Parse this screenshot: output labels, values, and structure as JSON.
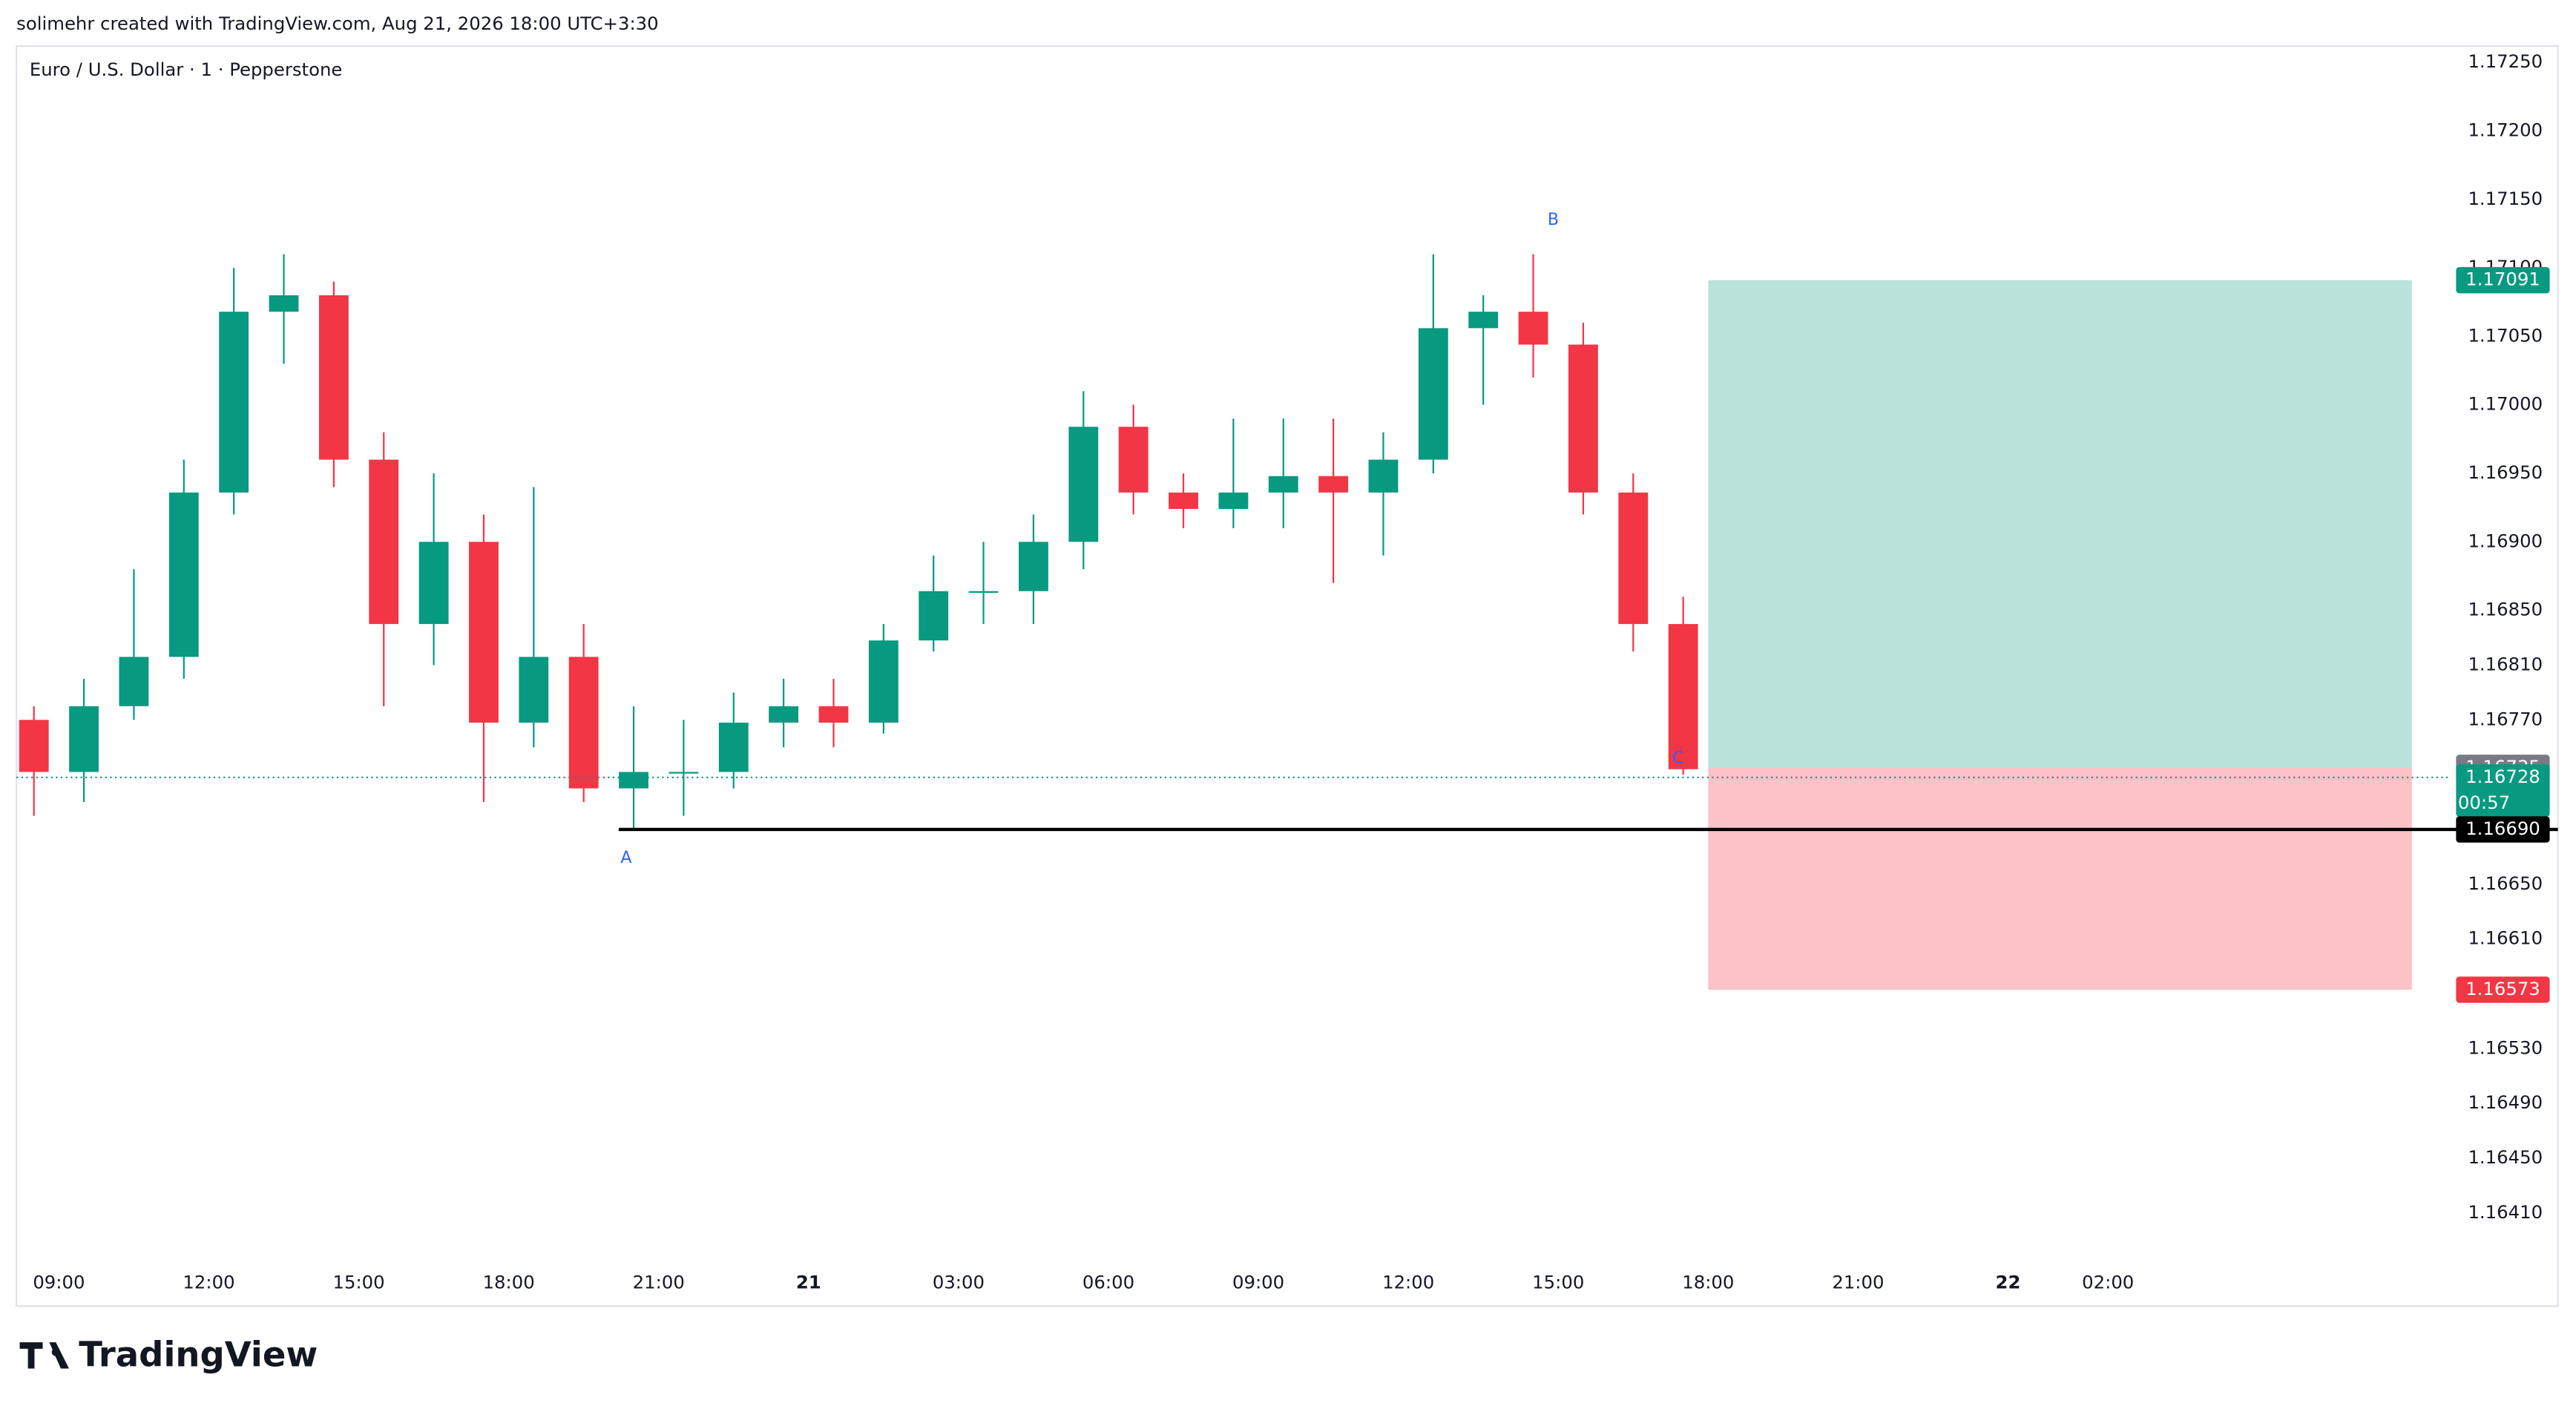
{
  "header": "solimehr created with TradingView.com, Aug 21, 2026 18:00 UTC+3:30",
  "footer": "TradingView",
  "chart_data": {
    "type": "candlestick",
    "title": "Euro / U.S. Dollar · 1 · Pepperstone",
    "x": [
      8.5,
      9.5,
      10.5,
      11.5,
      12.5,
      13.5,
      14.5,
      15.5,
      16.5,
      17.5,
      18.5,
      19.5,
      20.5,
      21.5,
      22.5,
      23.5,
      24.5,
      25.5,
      26.5,
      27.5,
      28.5,
      29.5,
      30.5,
      31.5,
      32.5,
      33.5,
      34.5,
      35.5,
      36.5,
      37.5,
      38.5,
      39.5,
      40.5,
      41.5
    ],
    "open": [
      1.1677,
      1.16732,
      1.1678,
      1.16816,
      1.16936,
      1.17068,
      1.1708,
      1.1696,
      1.1684,
      1.169,
      1.16768,
      1.16816,
      1.1672,
      1.16732,
      1.16732,
      1.16768,
      1.1678,
      1.16768,
      1.16828,
      1.16864,
      1.16864,
      1.169,
      1.16984,
      1.16936,
      1.16924,
      1.16936,
      1.16948,
      1.16936,
      1.1696,
      1.17056,
      1.17068,
      1.17044,
      1.16936,
      1.1684
    ],
    "high": [
      1.1678,
      1.168,
      1.1688,
      1.1696,
      1.171,
      1.1711,
      1.1709,
      1.1698,
      1.1695,
      1.1692,
      1.1694,
      1.1684,
      1.1678,
      1.1677,
      1.1679,
      1.168,
      1.168,
      1.1684,
      1.1689,
      1.169,
      1.1692,
      1.1701,
      1.17,
      1.1695,
      1.1699,
      1.1699,
      1.1699,
      1.1698,
      1.1711,
      1.1708,
      1.1711,
      1.1706,
      1.1695,
      1.1686
    ],
    "low": [
      1.167,
      1.1671,
      1.1677,
      1.168,
      1.1692,
      1.1703,
      1.1694,
      1.1678,
      1.1681,
      1.1671,
      1.1675,
      1.1671,
      1.1669,
      1.167,
      1.1672,
      1.1675,
      1.1675,
      1.1676,
      1.1682,
      1.1684,
      1.1684,
      1.1688,
      1.1692,
      1.1691,
      1.1691,
      1.1691,
      1.1687,
      1.1689,
      1.1695,
      1.17,
      1.1702,
      1.1692,
      1.1682,
      1.1673
    ],
    "close": [
      1.16732,
      1.1678,
      1.16816,
      1.16936,
      1.17068,
      1.1708,
      1.1696,
      1.1684,
      1.169,
      1.16768,
      1.16816,
      1.1672,
      1.16732,
      1.16732,
      1.16768,
      1.1678,
      1.16768,
      1.16828,
      1.16864,
      1.16864,
      1.169,
      1.16984,
      1.16936,
      1.16924,
      1.16936,
      1.16948,
      1.16936,
      1.1696,
      1.17056,
      1.17068,
      1.17044,
      1.16936,
      1.1684,
      1.16734
    ],
    "up_color": "#089981",
    "down_color": "#f23645",
    "xlim": [
      8.15,
      56.8
    ],
    "ylim": [
      1.16378,
      1.17262
    ],
    "xticks": [
      {
        "value": 9,
        "label": "09:00"
      },
      {
        "value": 12,
        "label": "12:00"
      },
      {
        "value": 15,
        "label": "15:00"
      },
      {
        "value": 18,
        "label": "18:00"
      },
      {
        "value": 21,
        "label": "21:00"
      },
      {
        "value": 24,
        "label": "21"
      },
      {
        "value": 27,
        "label": "03:00"
      },
      {
        "value": 30,
        "label": "06:00"
      },
      {
        "value": 33,
        "label": "09:00"
      },
      {
        "value": 36,
        "label": "12:00"
      },
      {
        "value": 39,
        "label": "15:00"
      },
      {
        "value": 42,
        "label": "18:00"
      },
      {
        "value": 45,
        "label": "21:00"
      },
      {
        "value": 48,
        "label": "22"
      },
      {
        "value": 50,
        "label": "02:00"
      }
    ],
    "yticks": [
      {
        "value": 1.1725,
        "label": "1.17250"
      },
      {
        "value": 1.172,
        "label": "1.17200"
      },
      {
        "value": 1.1715,
        "label": "1.17150"
      },
      {
        "value": 1.171,
        "label": "1.17100"
      },
      {
        "value": 1.1705,
        "label": "1.17050"
      },
      {
        "value": 1.17,
        "label": "1.17000"
      },
      {
        "value": 1.1695,
        "label": "1.16950"
      },
      {
        "value": 1.169,
        "label": "1.16900"
      },
      {
        "value": 1.1685,
        "label": "1.16850"
      },
      {
        "value": 1.1681,
        "label": "1.16810"
      },
      {
        "value": 1.1677,
        "label": "1.16770"
      },
      {
        "value": 1.1665,
        "label": "1.16650"
      },
      {
        "value": 1.1661,
        "label": "1.16610"
      },
      {
        "value": 1.1653,
        "label": "1.16530"
      },
      {
        "value": 1.1649,
        "label": "1.16490"
      },
      {
        "value": 1.1645,
        "label": "1.16450"
      },
      {
        "value": 1.1641,
        "label": "1.16410"
      }
    ],
    "annotations": [
      {
        "text": "A",
        "x": 20.35,
        "y": 1.16669
      },
      {
        "text": "B",
        "x": 38.9,
        "y": 1.17135
      },
      {
        "text": "C",
        "x": 41.4,
        "y": 1.16742
      }
    ],
    "position": {
      "entry": 1.16735,
      "take_profit": 1.17091,
      "stop_loss": 1.16573,
      "x_start": 42,
      "x_end": 56.08
    },
    "hline": {
      "value": 1.1669,
      "label": "1.16690",
      "x_start": 20.2
    },
    "last_price": 1.16728,
    "countdown": "00:57"
  }
}
